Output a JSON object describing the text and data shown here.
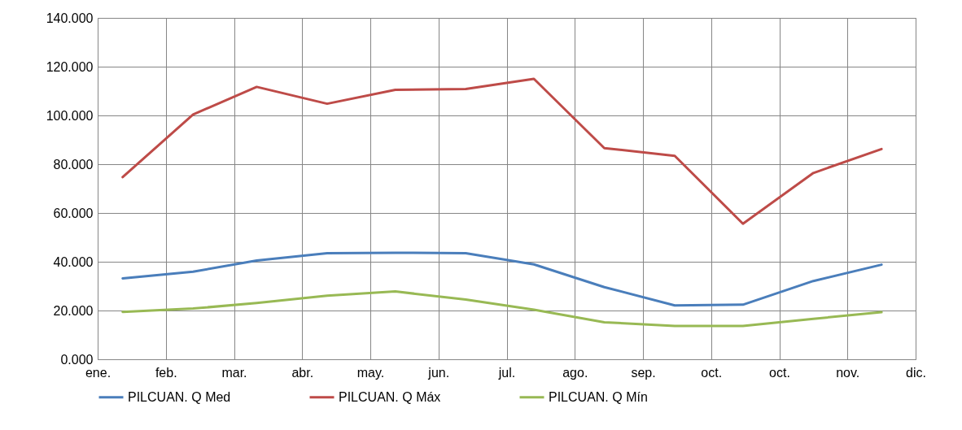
{
  "chart_data": {
    "type": "line",
    "x": [
      "--01-15",
      "--02-15",
      "--03-15",
      "--04-15",
      "--05-15",
      "--06-15",
      "--07-15",
      "--08-15",
      "--09-15",
      "--10-15",
      "--11-15",
      "--12-15"
    ],
    "xlim": [
      "--01-04",
      "--12-30"
    ],
    "xticks": [
      {
        "value": "--01-04",
        "label": "ene."
      },
      {
        "value": "--02-03",
        "label": "feb."
      },
      {
        "value": "--03-05",
        "label": "mar."
      },
      {
        "value": "--04-04",
        "label": "abr."
      },
      {
        "value": "--05-04",
        "label": "may."
      },
      {
        "value": "--06-03",
        "label": "jun."
      },
      {
        "value": "--07-03",
        "label": "jul."
      },
      {
        "value": "--08-02",
        "label": "ago."
      },
      {
        "value": "--09-01",
        "label": "sep."
      },
      {
        "value": "--10-01",
        "label": "oct."
      },
      {
        "value": "--10-31",
        "label": "oct."
      },
      {
        "value": "--11-30",
        "label": "nov."
      },
      {
        "value": "--12-30",
        "label": "dic."
      }
    ],
    "ylim": [
      0,
      140
    ],
    "yticks": [
      {
        "value": 0,
        "label": "0.000"
      },
      {
        "value": 20,
        "label": "20.000"
      },
      {
        "value": 40,
        "label": "40.000"
      },
      {
        "value": 60,
        "label": "60.000"
      },
      {
        "value": 80,
        "label": "80.000"
      },
      {
        "value": 100,
        "label": "100.000"
      },
      {
        "value": 120,
        "label": "120.000"
      },
      {
        "value": 140,
        "label": "140.000"
      }
    ],
    "series": [
      {
        "name": "PILCUAN. Q Med",
        "color": "#4a7ebb",
        "values": [
          33.2,
          35.9,
          40.5,
          43.5,
          43.7,
          43.5,
          38.9,
          29.6,
          22.1,
          22.4,
          32.1,
          38.8
        ]
      },
      {
        "name": "PILCUAN. Q Máx",
        "color": "#be4b48",
        "values": [
          74.7,
          100.4,
          111.7,
          104.8,
          110.5,
          110.8,
          115,
          86.6,
          83.4,
          55.6,
          76.4,
          86.2
        ]
      },
      {
        "name": "PILCUAN. Q Mín",
        "color": "#98b954",
        "values": [
          19.4,
          20.8,
          23.1,
          26.1,
          27.8,
          24.5,
          20.3,
          15.2,
          13.7,
          13.7,
          16.6,
          19.3
        ]
      }
    ],
    "grid": true,
    "legend": "bottom",
    "line_style": "solid"
  }
}
